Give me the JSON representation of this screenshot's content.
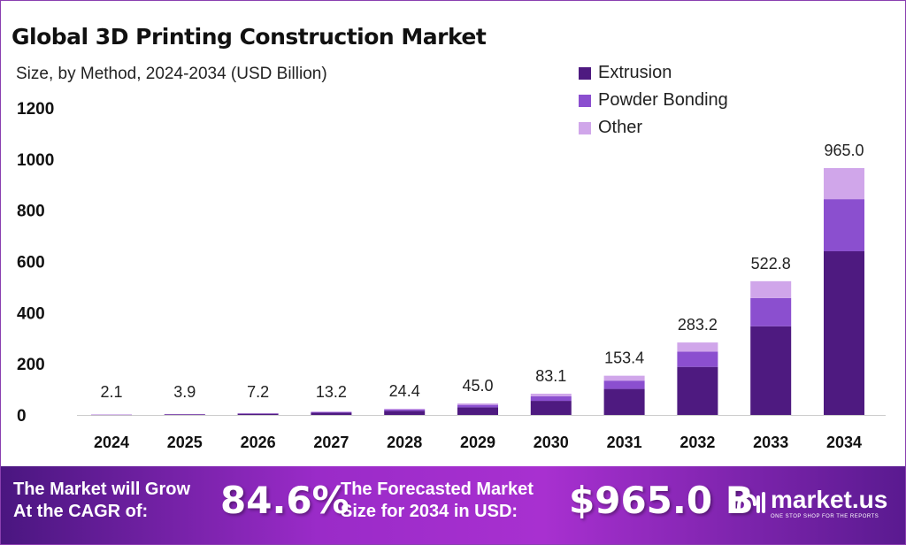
{
  "chart_data": {
    "type": "bar",
    "stacked": true,
    "title": "Global 3D Printing Construction Market",
    "subtitle": "Size, by Method, 2024-2034 (USD Billion)",
    "categories": [
      "2024",
      "2025",
      "2026",
      "2027",
      "2028",
      "2029",
      "2030",
      "2031",
      "2032",
      "2033",
      "2034"
    ],
    "series": [
      {
        "name": "Extrusion",
        "color": "#4e1a80",
        "values": [
          1.4,
          2.6,
          4.8,
          8.8,
          16.2,
          29.8,
          55.1,
          101.7,
          187.8,
          346.6,
          639.8
        ]
      },
      {
        "name": "Powder Bonding",
        "color": "#8b4fcf",
        "values": [
          0.4,
          0.8,
          1.5,
          2.8,
          5.1,
          9.5,
          17.5,
          32.4,
          59.8,
          110.3,
          203.6
        ]
      },
      {
        "name": "Other",
        "color": "#d0a6ea",
        "values": [
          0.3,
          0.5,
          0.9,
          1.6,
          3.1,
          5.7,
          10.5,
          19.3,
          35.6,
          65.9,
          121.6
        ]
      }
    ],
    "totals": [
      "2.1",
      "3.9",
      "7.2",
      "13.2",
      "24.4",
      "45.0",
      "83.1",
      "153.4",
      "283.2",
      "522.8",
      "965.0"
    ],
    "yticks": [
      "0",
      "200",
      "400",
      "600",
      "800",
      "1000",
      "1200"
    ],
    "ylim": [
      0,
      1200
    ],
    "grid": false,
    "legend": "top-right"
  },
  "banner": {
    "cagr_label_1": "The Market will Grow",
    "cagr_label_2": "At the CAGR of:",
    "cagr": "84.6%",
    "forecast_label_1": "The Forecasted Market",
    "forecast_label_2": "Size for 2034 in USD:",
    "forecast": "$965.0 B",
    "logo_name": "market.us",
    "logo_tag": "ONE STOP SHOP FOR THE REPORTS"
  }
}
